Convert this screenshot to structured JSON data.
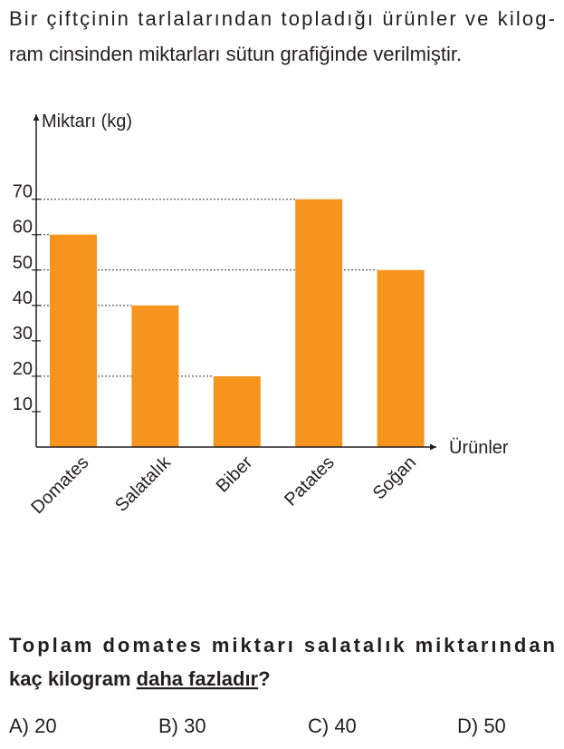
{
  "intro": [
    "Bir çiftçinin tarlalarından topladığı ürünler ve kilog-",
    "ram cinsinden miktarları sütun grafiğinde verilmiştir."
  ],
  "chart_data": {
    "type": "bar",
    "y_label": "Miktarı (kg)",
    "x_label": "Ürünler",
    "categories": [
      "Domates",
      "Salatalık",
      "Biber",
      "Patates",
      "Soğan"
    ],
    "values": [
      60,
      40,
      20,
      70,
      50
    ],
    "color": "#f7941d",
    "ylim": [
      0,
      94
    ],
    "yticks": [
      10,
      20,
      30,
      40,
      50,
      60,
      70
    ]
  },
  "question": {
    "line1": "Toplam domates miktarı salatalık miktarından",
    "line2": [
      "kaç kilogram ",
      "daha fazladır",
      "?"
    ]
  },
  "options": [
    "A) 20",
    "B) 30",
    "C) 40",
    "D) 50"
  ]
}
